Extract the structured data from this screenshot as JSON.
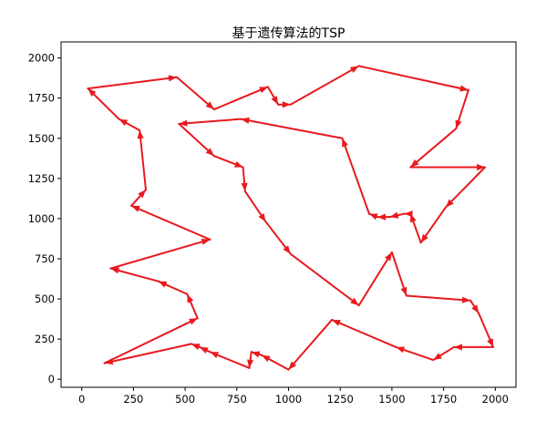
{
  "chart_data": {
    "type": "line",
    "title": "基于遗传算法的TSP",
    "xlabel": "",
    "ylabel": "",
    "xlim": [
      -100,
      2100
    ],
    "ylim": [
      -50,
      2100
    ],
    "xticks": [
      0,
      250,
      500,
      750,
      1000,
      1250,
      1500,
      1750,
      2000
    ],
    "yticks": [
      0,
      250,
      500,
      750,
      1000,
      1250,
      1500,
      1750,
      2000
    ],
    "grid": false,
    "legend": "none",
    "line_color": "#e8191e",
    "route": [
      [
        30,
        1810
      ],
      [
        460,
        1880
      ],
      [
        640,
        1680
      ],
      [
        900,
        1820
      ],
      [
        950,
        1710
      ],
      [
        1010,
        1710
      ],
      [
        1340,
        1950
      ],
      [
        1870,
        1800
      ],
      [
        1810,
        1560
      ],
      [
        1590,
        1320
      ],
      [
        1950,
        1320
      ],
      [
        1760,
        1070
      ],
      [
        1640,
        850
      ],
      [
        1590,
        1030
      ],
      [
        1560,
        1030
      ],
      [
        1490,
        1010
      ],
      [
        1430,
        1010
      ],
      [
        1390,
        1030
      ],
      [
        1260,
        1500
      ],
      [
        770,
        1620
      ],
      [
        470,
        1590
      ],
      [
        640,
        1390
      ],
      [
        780,
        1320
      ],
      [
        790,
        1170
      ],
      [
        890,
        980
      ],
      [
        1010,
        780
      ],
      [
        1340,
        460
      ],
      [
        1500,
        790
      ],
      [
        1570,
        520
      ],
      [
        1880,
        490
      ],
      [
        1920,
        410
      ],
      [
        1990,
        200
      ],
      [
        1800,
        200
      ],
      [
        1700,
        120
      ],
      [
        1520,
        200
      ],
      [
        1210,
        370
      ],
      [
        1000,
        60
      ],
      [
        870,
        150
      ],
      [
        820,
        170
      ],
      [
        810,
        70
      ],
      [
        620,
        170
      ],
      [
        570,
        200
      ],
      [
        530,
        220
      ],
      [
        110,
        100
      ],
      [
        560,
        380
      ],
      [
        510,
        530
      ],
      [
        370,
        610
      ],
      [
        140,
        690
      ],
      [
        620,
        870
      ],
      [
        240,
        1080
      ],
      [
        310,
        1180
      ],
      [
        280,
        1550
      ],
      [
        180,
        1620
      ],
      [
        30,
        1810
      ]
    ]
  }
}
